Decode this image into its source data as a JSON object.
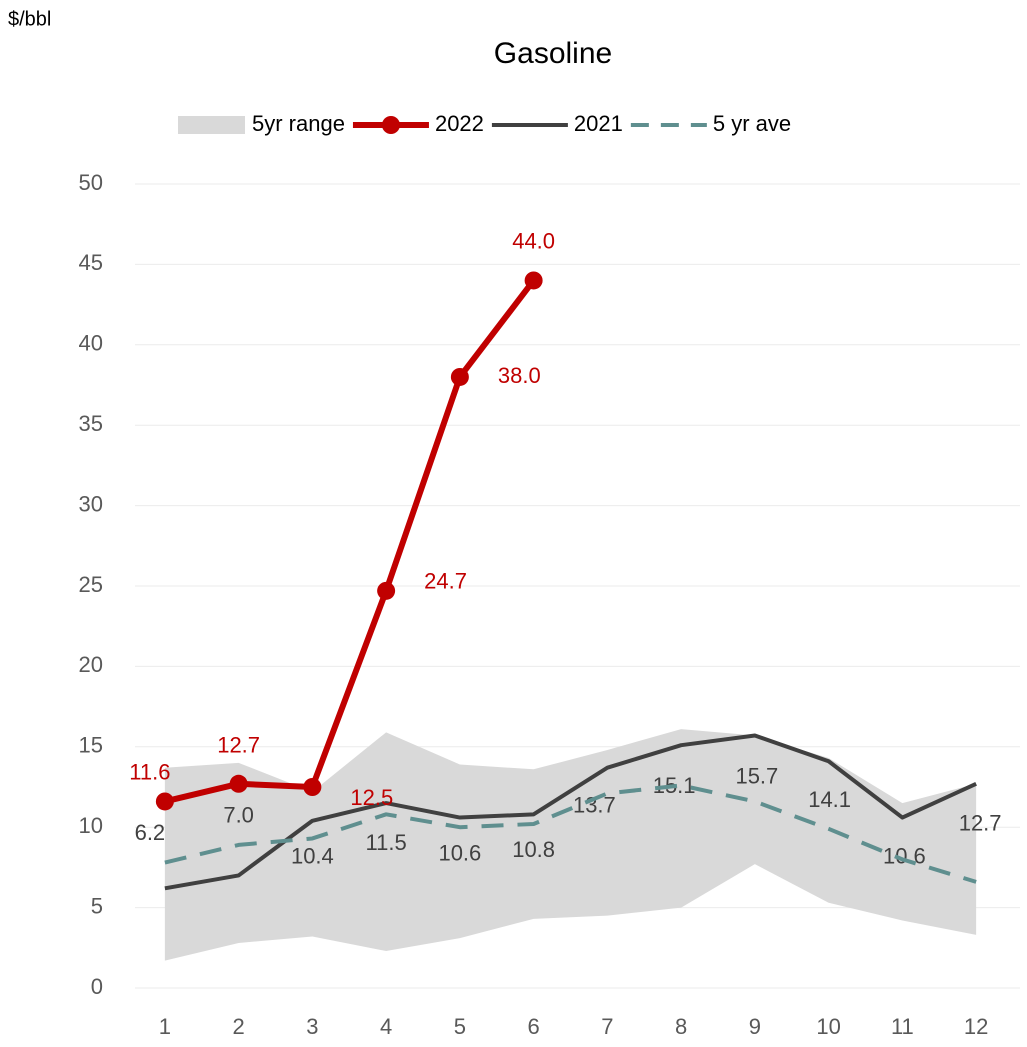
{
  "chart_data": {
    "type": "line",
    "title": "Gasoline",
    "y_label": "$/bbl",
    "categories": [
      "1",
      "2",
      "3",
      "4",
      "5",
      "6",
      "7",
      "8",
      "9",
      "10",
      "11",
      "12"
    ],
    "ylim": [
      0,
      50
    ],
    "yticks": [
      0,
      5,
      10,
      15,
      20,
      25,
      30,
      35,
      40,
      45,
      50
    ],
    "grid": true,
    "legend": "top",
    "series": [
      {
        "name": "5yr range",
        "kind": "range",
        "color": "#d9d9d9",
        "high": [
          13.7,
          14.0,
          12.2,
          15.9,
          13.9,
          13.6,
          14.8,
          16.1,
          15.7,
          14.3,
          11.5,
          12.7
        ],
        "low": [
          1.7,
          2.8,
          3.2,
          2.3,
          3.1,
          4.3,
          4.5,
          5.0,
          7.7,
          5.3,
          4.2,
          3.3
        ]
      },
      {
        "name": "2022",
        "color": "#c00000",
        "values": [
          11.6,
          12.7,
          12.5,
          24.7,
          38.0,
          44.0,
          null,
          null,
          null,
          null,
          null,
          null
        ],
        "value_labels": [
          "11.6",
          "12.7",
          "12.5",
          "24.7",
          "38.0",
          "44.0",
          null,
          null,
          null,
          null,
          null,
          null
        ]
      },
      {
        "name": "2021",
        "color": "#404040",
        "values": [
          6.2,
          7.0,
          10.4,
          11.5,
          10.6,
          10.8,
          13.7,
          15.1,
          15.7,
          14.1,
          10.6,
          12.7
        ],
        "value_labels": [
          "6.2",
          "7.0",
          "10.4",
          "11.5",
          "10.6",
          "10.8",
          "13.7",
          "15.1",
          "15.7",
          "14.1",
          "10.6",
          "12.7"
        ]
      },
      {
        "name": "5 yr ave",
        "color": "#5f8f8f",
        "dashed": true,
        "values": [
          7.8,
          8.9,
          9.3,
          10.8,
          10.0,
          10.2,
          12.1,
          12.6,
          11.6,
          9.9,
          8.0,
          6.6
        ]
      }
    ]
  }
}
